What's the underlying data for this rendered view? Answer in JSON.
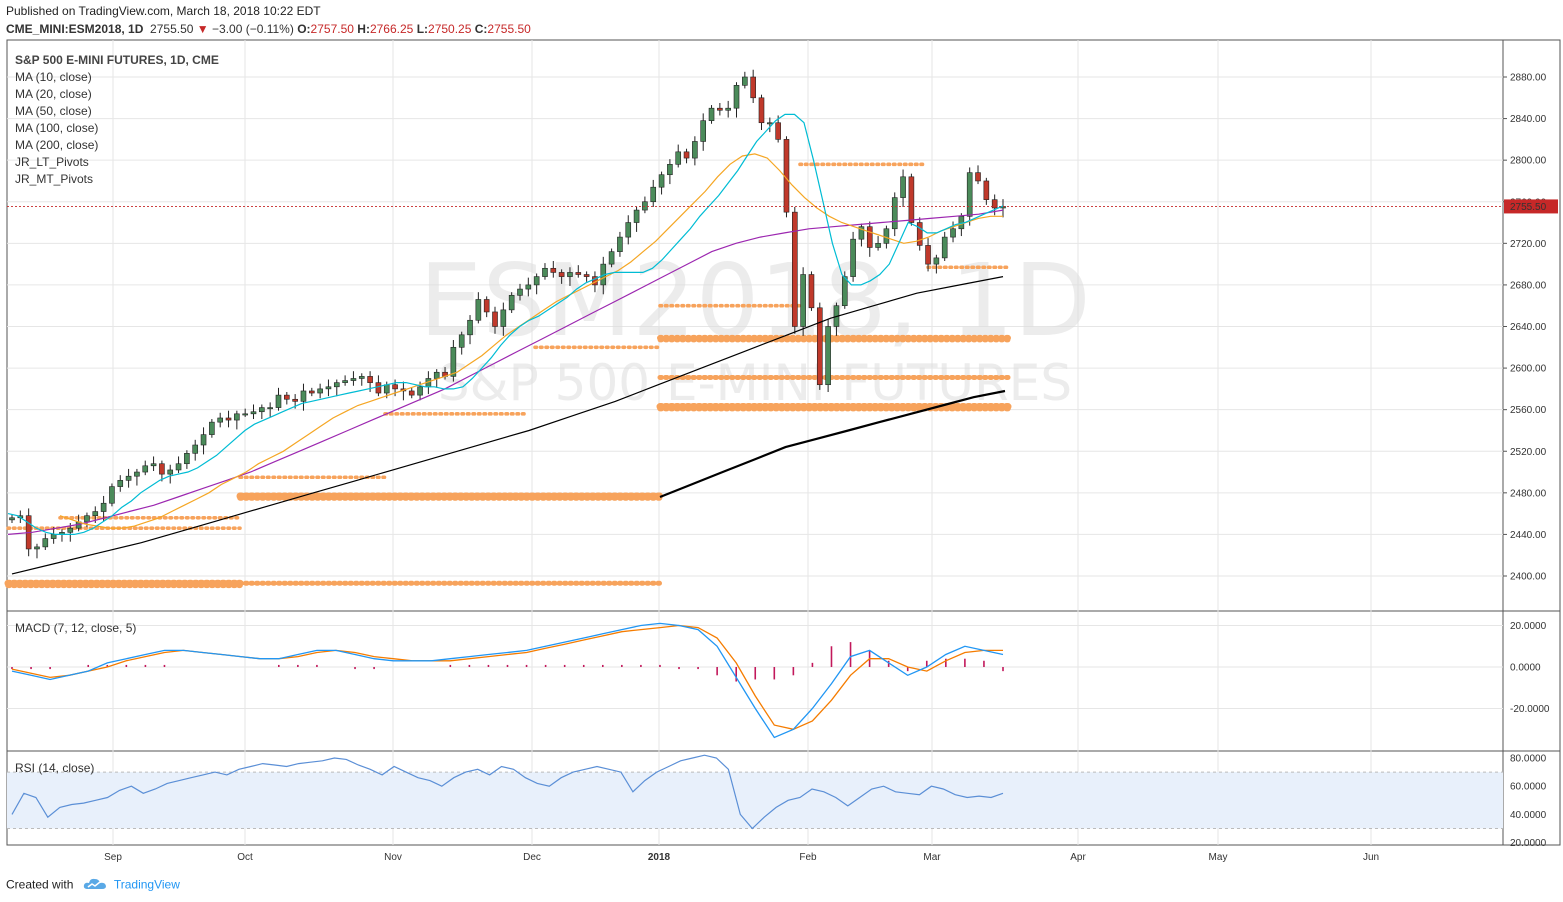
{
  "header": {
    "published": "Published on TradingView.com, March 18, 2018 10:22 EDT",
    "symbol": "CME_MINI:ESM2018, 1D",
    "last": "2755.50",
    "change": "−3.00 (−0.11%)",
    "open_label": "O:",
    "open": "2757.50",
    "high_label": "H:",
    "high": "2766.25",
    "low_label": "L:",
    "low": "2750.25",
    "close_label": "C:",
    "close": "2755.50"
  },
  "legend": {
    "title": "S&P 500 E-MINI FUTURES, 1D, CME",
    "items": [
      "MA (10, close)",
      "MA (20, close)",
      "MA (50, close)",
      "MA (100, close)",
      "MA (200, close)",
      "JR_LT_Pivots",
      "JR_MT_Pivots"
    ]
  },
  "watermark": {
    "symbol": "ESM2018, 1D",
    "name": "S&P 500 E-MINI FUTURES"
  },
  "macd_label": "MACD (7, 12, close, 5)",
  "rsi_label": "RSI (14, close)",
  "footer": {
    "created": "Created with",
    "brand": "TradingView"
  },
  "colors": {
    "up": "#4b8b5a",
    "down": "#c0392b",
    "ma10": "#00bcd4",
    "ma20": "#f5a623",
    "ma50": "#9c27b0",
    "ma100": "#000000",
    "ma200": "#000000",
    "pivot": "#f7a35c",
    "macd": "#2196f3",
    "signal": "#f57c00",
    "hist": "#c2185b",
    "rsi": "#5b8fd6",
    "last_price_tag": "#c62828"
  },
  "chart_data": {
    "type": "candlestick",
    "price_axis": {
      "ticks": [
        2400,
        2440,
        2480,
        2520,
        2560,
        2600,
        2640,
        2680,
        2720,
        2760,
        2800,
        2840,
        2880
      ],
      "labels": [
        "2400.00",
        "2440.00",
        "2480.00",
        "2520.00",
        "2560.00",
        "2600.00",
        "2640.00",
        "2680.00",
        "2720.00",
        "2760.00",
        "2800.00",
        "2840.00",
        "2880.00"
      ]
    },
    "last_price": {
      "value": 2755.5,
      "label": "2755.50"
    },
    "time_axis": [
      "Sep",
      "Oct",
      "Nov",
      "Dec",
      "2018",
      "Feb",
      "Mar",
      "Apr",
      "May",
      "Jun"
    ],
    "closes": [
      2456,
      2458,
      2426,
      2428,
      2436,
      2440,
      2442,
      2446,
      2452,
      2458,
      2462,
      2470,
      2486,
      2492,
      2496,
      2500,
      2506,
      2508,
      2498,
      2502,
      2508,
      2518,
      2526,
      2536,
      2548,
      2552,
      2550,
      2556,
      2556,
      2558,
      2562,
      2562,
      2574,
      2570,
      2568,
      2578,
      2576,
      2580,
      2582,
      2586,
      2588,
      2590,
      2592,
      2586,
      2576,
      2584,
      2580,
      2578,
      2574,
      2582,
      2590,
      2596,
      2592,
      2620,
      2632,
      2646,
      2666,
      2654,
      2640,
      2656,
      2670,
      2676,
      2680,
      2688,
      2696,
      2692,
      2688,
      2692,
      2690,
      2688,
      2680,
      2700,
      2712,
      2726,
      2740,
      2752,
      2760,
      2774,
      2786,
      2796,
      2808,
      2802,
      2818,
      2838,
      2850,
      2848,
      2850,
      2872,
      2880,
      2860,
      2836,
      2836,
      2820,
      2750,
      2640,
      2690,
      2658,
      2584,
      2640,
      2660,
      2688,
      2724,
      2736,
      2716,
      2720,
      2734,
      2764,
      2784,
      2740,
      2718,
      2700,
      2706,
      2726,
      2734,
      2746,
      2788,
      2780,
      2762,
      2754,
      2755.5
    ],
    "ma10": [
      2460,
      2458,
      2452,
      2446,
      2442,
      2440,
      2440,
      2440,
      2442,
      2446,
      2452,
      2458,
      2466,
      2472,
      2480,
      2486,
      2492,
      2496,
      2498,
      2500,
      2504,
      2510,
      2516,
      2524,
      2532,
      2540,
      2546,
      2550,
      2554,
      2558,
      2562,
      2566,
      2568,
      2570,
      2572,
      2574,
      2576,
      2578,
      2580,
      2582,
      2584,
      2586,
      2586,
      2584,
      2582,
      2582,
      2580,
      2580,
      2582,
      2590,
      2600,
      2610,
      2622,
      2632,
      2640,
      2646,
      2650,
      2656,
      2662,
      2668,
      2676,
      2682,
      2686,
      2690,
      2692,
      2692,
      2692,
      2692,
      2696,
      2704,
      2714,
      2724,
      2734,
      2746,
      2756,
      2766,
      2778,
      2790,
      2804,
      2818,
      2828,
      2838,
      2844,
      2844,
      2836,
      2800,
      2760,
      2720,
      2690,
      2680,
      2680,
      2684,
      2690,
      2700,
      2720,
      2740,
      2736,
      2730,
      2730,
      2734,
      2738,
      2740,
      2744,
      2748,
      2752,
      2756
    ],
    "ma20": [
      2458,
      2454,
      2450,
      2448,
      2446,
      2446,
      2448,
      2452,
      2456,
      2462,
      2468,
      2474,
      2480,
      2488,
      2494,
      2500,
      2508,
      2514,
      2520,
      2528,
      2536,
      2544,
      2552,
      2558,
      2564,
      2568,
      2572,
      2576,
      2580,
      2584,
      2588,
      2592,
      2596,
      2604,
      2612,
      2622,
      2632,
      2640,
      2648,
      2656,
      2664,
      2670,
      2676,
      2682,
      2688,
      2694,
      2702,
      2712,
      2722,
      2734,
      2746,
      2758,
      2770,
      2784,
      2796,
      2804,
      2806,
      2802,
      2790,
      2776,
      2764,
      2754,
      2746,
      2740,
      2736,
      2732,
      2728,
      2724,
      2720,
      2722,
      2726,
      2732,
      2736,
      2740,
      2744,
      2746,
      2746
    ],
    "ma50": [
      2440,
      2442,
      2446,
      2450,
      2456,
      2462,
      2468,
      2476,
      2484,
      2492,
      2500,
      2510,
      2520,
      2530,
      2540,
      2550,
      2560,
      2570,
      2580,
      2592,
      2604,
      2616,
      2628,
      2640,
      2652,
      2664,
      2676,
      2688,
      2700,
      2712,
      2720,
      2726,
      2730,
      2734,
      2736,
      2738,
      2740,
      2742,
      2744,
      2746,
      2748,
      2752
    ],
    "ma100": [
      2402,
      2412,
      2422,
      2432,
      2444,
      2456,
      2468,
      2480,
      2492,
      2504,
      2516,
      2528,
      2540,
      2554,
      2568,
      2584,
      2600,
      2616,
      2632,
      2648,
      2660,
      2672,
      2680,
      2688
    ],
    "ma200": [
      2476,
      2488,
      2500,
      2512,
      2524,
      2532,
      2540,
      2548,
      2556,
      2564,
      2572,
      2578
    ],
    "pivots": [
      {
        "label": "JR_LT_Pivots",
        "levels": [
          2393,
          2477,
          2563
        ]
      },
      {
        "label": "JR_MT_Pivots",
        "levels": [
          2446,
          2456,
          2495,
          2556,
          2591,
          2620,
          2629,
          2660,
          2697,
          2796
        ]
      }
    ],
    "macd": {
      "axis_ticks": [
        20,
        0,
        -20
      ],
      "axis_labels": [
        "20.0000",
        "0.0000",
        "-20.0000"
      ],
      "line": [
        -2,
        -4,
        -6,
        -4,
        -2,
        2,
        4,
        6,
        8,
        8,
        7,
        6,
        5,
        4,
        4,
        6,
        8,
        8,
        6,
        4,
        3,
        3,
        3,
        4,
        5,
        6,
        7,
        8,
        10,
        12,
        14,
        16,
        18,
        20,
        21,
        20,
        18,
        10,
        -5,
        -20,
        -34,
        -30,
        -20,
        -8,
        5,
        8,
        2,
        -4,
        0,
        6,
        10,
        8,
        6
      ],
      "signal": [
        -1,
        -3,
        -5,
        -4,
        -2,
        0,
        3,
        5,
        7,
        8,
        7,
        6,
        5,
        4,
        4,
        5,
        7,
        8,
        7,
        5,
        4,
        3,
        3,
        3,
        4,
        5,
        6,
        7,
        9,
        11,
        13,
        15,
        17,
        18,
        19,
        20,
        19,
        14,
        2,
        -14,
        -28,
        -30,
        -26,
        -16,
        -4,
        4,
        4,
        0,
        -2,
        3,
        7,
        8,
        8
      ],
      "hist": [
        -1,
        -1,
        -1,
        0,
        1,
        1,
        1,
        1,
        1,
        0,
        0,
        0,
        0,
        0,
        1,
        1,
        1,
        0,
        -1,
        -1,
        0,
        0,
        0,
        1,
        1,
        1,
        1,
        1,
        1,
        1,
        1,
        1,
        1,
        1,
        1,
        -1,
        -1,
        -4,
        -7,
        -6,
        -6,
        -4,
        2,
        10,
        12,
        8,
        3,
        -2,
        3,
        4,
        4,
        3,
        -2
      ]
    },
    "rsi": {
      "axis_ticks": [
        80,
        60,
        40,
        20
      ],
      "axis_labels": [
        "80.0000",
        "60.0000",
        "40.0000",
        "20.0000"
      ],
      "band": [
        30,
        70
      ],
      "values": [
        40,
        55,
        52,
        38,
        45,
        47,
        48,
        50,
        52,
        57,
        60,
        55,
        58,
        62,
        64,
        66,
        68,
        70,
        68,
        72,
        74,
        76,
        75,
        74,
        76,
        77,
        78,
        80,
        79,
        75,
        72,
        68,
        74,
        70,
        66,
        64,
        60,
        66,
        70,
        72,
        68,
        74,
        72,
        66,
        62,
        60,
        66,
        70,
        72,
        74,
        72,
        70,
        56,
        64,
        70,
        74,
        78,
        80,
        82,
        80,
        72,
        40,
        30,
        38,
        45,
        50,
        52,
        58,
        56,
        52,
        46,
        52,
        58,
        60,
        56,
        55,
        54,
        60,
        58,
        54,
        52,
        53,
        52,
        55
      ]
    }
  }
}
